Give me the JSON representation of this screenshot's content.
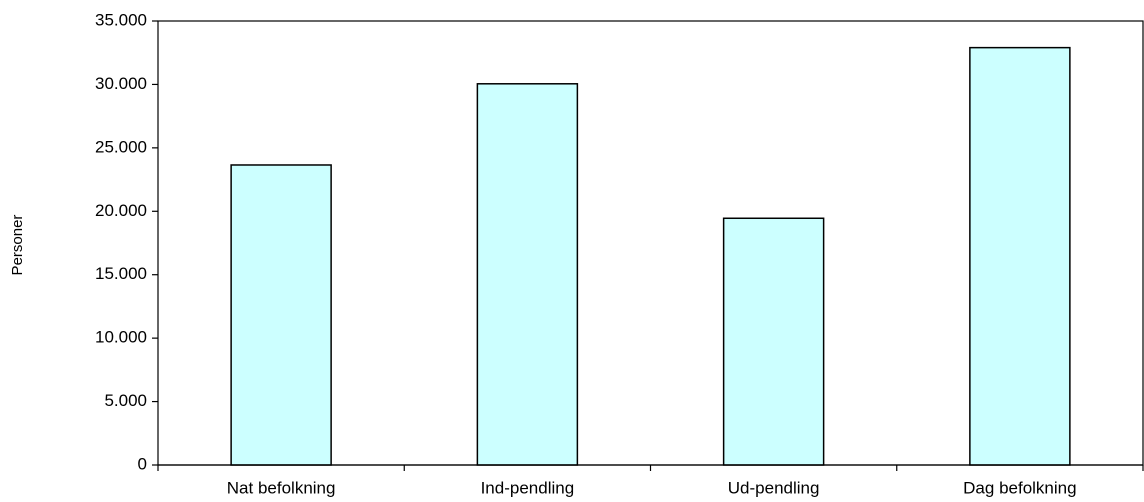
{
  "chart_data": {
    "type": "bar",
    "categories": [
      "Nat befolkning",
      "Ind-pendling",
      "Ud-pendling",
      "Dag befolkning"
    ],
    "values": [
      23650,
      30050,
      19450,
      32900
    ],
    "title": "",
    "xlabel": "",
    "ylabel": "Personer",
    "ylim": [
      0,
      35000
    ],
    "yticks": [
      0,
      5000,
      10000,
      15000,
      20000,
      25000,
      30000,
      35000
    ],
    "ytick_labels": [
      "0",
      "5.000",
      "10.000",
      "15.000",
      "20.000",
      "25.000",
      "30.000",
      "35.000"
    ],
    "grid": false,
    "legend": "none",
    "colors": {
      "bar_fill": "#CCFFFF",
      "bar_stroke": "#000000",
      "axis": "#000000"
    }
  }
}
